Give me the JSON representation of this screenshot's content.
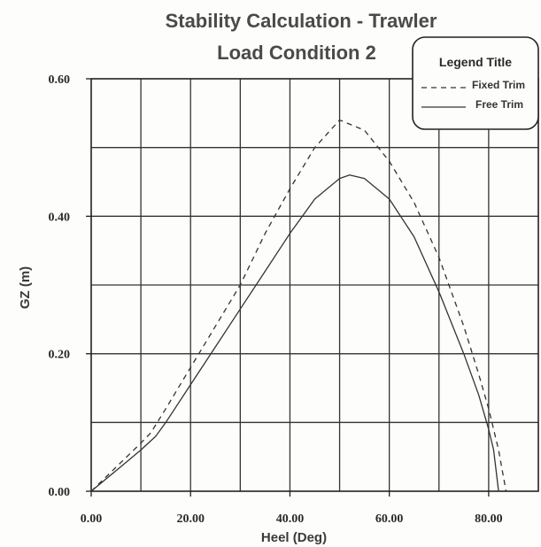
{
  "chart_data": {
    "type": "line",
    "title": "Stability Calculation - Trawler",
    "subtitle": "Load Condition 2",
    "xlabel": "Heel (Deg)",
    "ylabel": "GZ (m)",
    "xlim": [
      0,
      90
    ],
    "ylim": [
      0,
      0.6
    ],
    "x_ticks": [
      "0.00",
      "20.00",
      "40.00",
      "60.00",
      "80.00"
    ],
    "y_ticks": [
      "0.00",
      "0.20",
      "0.40",
      "0.60"
    ],
    "grid": true,
    "legend": {
      "title": "Legend Title",
      "position": "top-right",
      "entries": [
        "Fixed Trim",
        "Free Trim"
      ]
    },
    "series": [
      {
        "name": "Fixed Trim",
        "style": "dashed",
        "color": "#333333",
        "x": [
          0,
          5,
          10,
          12,
          15,
          20,
          25,
          30,
          35,
          40,
          45,
          50,
          55,
          60,
          65,
          70,
          75,
          78,
          80,
          82,
          83.5
        ],
        "y": [
          0,
          0.035,
          0.07,
          0.085,
          0.12,
          0.18,
          0.24,
          0.3,
          0.375,
          0.44,
          0.5,
          0.54,
          0.525,
          0.48,
          0.42,
          0.34,
          0.24,
          0.17,
          0.12,
          0.06,
          0
        ]
      },
      {
        "name": "Free Trim",
        "style": "solid",
        "color": "#333333",
        "x": [
          0,
          5,
          10,
          13,
          15,
          20,
          25,
          30,
          35,
          40,
          45,
          50,
          52,
          55,
          60,
          65,
          70,
          75,
          78,
          80,
          81,
          82
        ],
        "y": [
          0,
          0.03,
          0.06,
          0.08,
          0.1,
          0.155,
          0.21,
          0.265,
          0.32,
          0.375,
          0.425,
          0.455,
          0.46,
          0.455,
          0.425,
          0.37,
          0.29,
          0.2,
          0.14,
          0.09,
          0.06,
          0
        ]
      }
    ]
  }
}
